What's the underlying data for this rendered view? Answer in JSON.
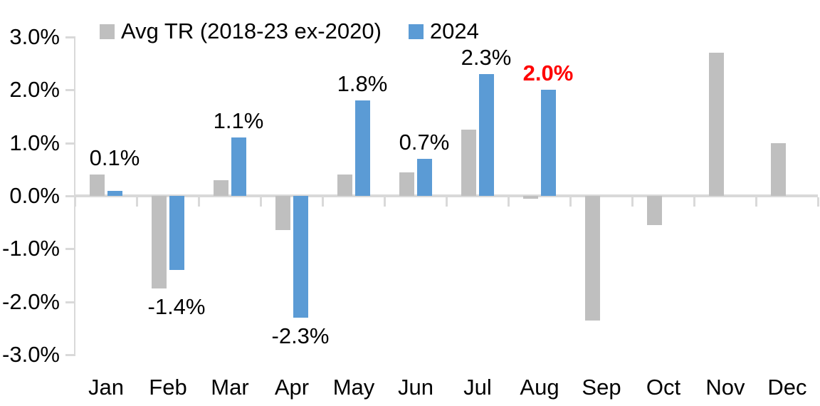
{
  "chart_data": {
    "type": "bar",
    "title": "",
    "xlabel": "",
    "ylabel": "",
    "categories": [
      "Jan",
      "Feb",
      "Mar",
      "Apr",
      "May",
      "Jun",
      "Jul",
      "Aug",
      "Sep",
      "Oct",
      "Nov",
      "Dec"
    ],
    "series": [
      {
        "name": "Avg TR (2018-23 ex-2020)",
        "color": "#BFBFBF",
        "values": [
          0.4,
          -1.75,
          0.3,
          -0.65,
          0.4,
          0.45,
          1.25,
          -0.05,
          -2.35,
          -0.55,
          2.7,
          1.0
        ]
      },
      {
        "name": "2024",
        "color": "#5B9BD5",
        "values": [
          0.1,
          -1.4,
          1.1,
          -2.3,
          1.8,
          0.7,
          2.3,
          2.0,
          null,
          null,
          null,
          null
        ]
      }
    ],
    "data_labels": [
      {
        "index": 0,
        "text": "0.1%",
        "color": "#000000",
        "bold": false
      },
      {
        "index": 1,
        "text": "-1.4%",
        "color": "#000000",
        "bold": false
      },
      {
        "index": 2,
        "text": "1.1%",
        "color": "#000000",
        "bold": false
      },
      {
        "index": 3,
        "text": "-2.3%",
        "color": "#000000",
        "bold": false
      },
      {
        "index": 4,
        "text": "1.8%",
        "color": "#000000",
        "bold": false
      },
      {
        "index": 5,
        "text": "0.7%",
        "color": "#000000",
        "bold": false
      },
      {
        "index": 6,
        "text": "2.3%",
        "color": "#000000",
        "bold": false
      },
      {
        "index": 7,
        "text": "2.0%",
        "color": "#FF0000",
        "bold": true
      }
    ],
    "yticks": [
      3,
      2,
      1,
      0,
      -1,
      -2,
      -3
    ],
    "ytick_suffix": "%",
    "ylim": [
      -3,
      3
    ],
    "grid": false,
    "legend_position": "top",
    "axis_color": "#D9D9D9",
    "text_color": "#000000"
  }
}
